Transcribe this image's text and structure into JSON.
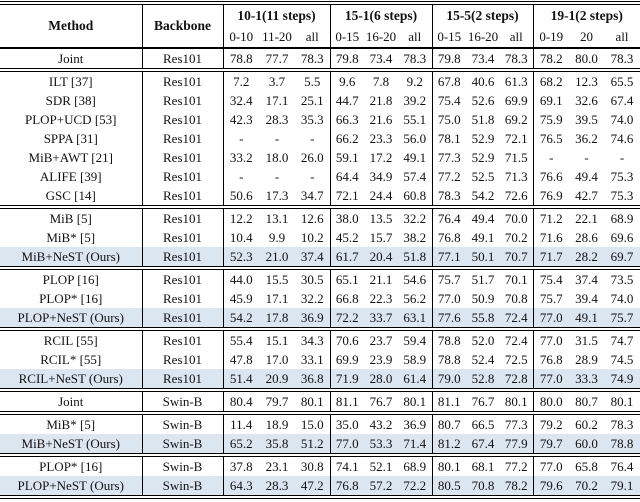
{
  "table": {
    "highlight_color": "#dce6f1",
    "header": {
      "method": "Method",
      "backbone": "Backbone",
      "groups": [
        {
          "label": "10-1(11 steps)",
          "cols": [
            "0-10",
            "11-20",
            "all"
          ]
        },
        {
          "label": "15-1(6 steps)",
          "cols": [
            "0-15",
            "16-20",
            "all"
          ]
        },
        {
          "label": "15-5(2 steps)",
          "cols": [
            "0-15",
            "16-20",
            "all"
          ]
        },
        {
          "label": "19-1(2 steps)",
          "cols": [
            "0-19",
            "20",
            "all"
          ]
        }
      ]
    },
    "sections": [
      {
        "rows": [
          {
            "method": "Joint",
            "backbone": "Res101",
            "highlight": false,
            "values": [
              "78.8",
              "77.7",
              "78.3",
              "79.8",
              "73.4",
              "78.3",
              "79.8",
              "73.4",
              "78.3",
              "78.2",
              "80.0",
              "78.3"
            ]
          }
        ]
      },
      {
        "rows": [
          {
            "method": "ILT [37]",
            "backbone": "Res101",
            "highlight": false,
            "values": [
              "7.2",
              "3.7",
              "5.5",
              "9.6",
              "7.8",
              "9.2",
              "67.8",
              "40.6",
              "61.3",
              "68.2",
              "12.3",
              "65.5"
            ]
          },
          {
            "method": "SDR [38]",
            "backbone": "Res101",
            "highlight": false,
            "values": [
              "32.4",
              "17.1",
              "25.1",
              "44.7",
              "21.8",
              "39.2",
              "75.4",
              "52.6",
              "69.9",
              "69.1",
              "32.6",
              "67.4"
            ]
          },
          {
            "method": "PLOP+UCD [53]",
            "backbone": "Res101",
            "highlight": false,
            "values": [
              "42.3",
              "28.3",
              "35.3",
              "66.3",
              "21.6",
              "55.1",
              "75.0",
              "51.8",
              "69.2",
              "75.9",
              "39.5",
              "74.0"
            ]
          },
          {
            "method": "SPPA [31]",
            "backbone": "Res101",
            "highlight": false,
            "values": [
              "-",
              "-",
              "-",
              "66.2",
              "23.3",
              "56.0",
              "78.1",
              "52.9",
              "72.1",
              "76.5",
              "36.2",
              "74.6"
            ]
          },
          {
            "method": "MiB+AWT [21]",
            "backbone": "Res101",
            "highlight": false,
            "values": [
              "33.2",
              "18.0",
              "26.0",
              "59.1",
              "17.2",
              "49.1",
              "77.3",
              "52.9",
              "71.5",
              "-",
              "-",
              "-"
            ]
          },
          {
            "method": "ALIFE [39]",
            "backbone": "Res101",
            "highlight": false,
            "values": [
              "-",
              "-",
              "-",
              "64.4",
              "34.9",
              "57.4",
              "77.2",
              "52.5",
              "71.3",
              "76.6",
              "49.4",
              "75.3"
            ]
          },
          {
            "method": "GSC [14]",
            "backbone": "Res101",
            "highlight": false,
            "values": [
              "50.6",
              "17.3",
              "34.7",
              "72.1",
              "24.4",
              "60.8",
              "78.3",
              "54.2",
              "72.6",
              "76.9",
              "42.7",
              "75.3"
            ]
          }
        ]
      },
      {
        "rows": [
          {
            "method": "MiB [5]",
            "backbone": "Res101",
            "highlight": false,
            "values": [
              "12.2",
              "13.1",
              "12.6",
              "38.0",
              "13.5",
              "32.2",
              "76.4",
              "49.4",
              "70.0",
              "71.2",
              "22.1",
              "68.9"
            ]
          },
          {
            "method": "MiB* [5]",
            "backbone": "Res101",
            "highlight": false,
            "values": [
              "10.4",
              "9.9",
              "10.2",
              "45.2",
              "15.7",
              "38.2",
              "76.8",
              "49.1",
              "70.2",
              "71.6",
              "28.6",
              "69.6"
            ]
          },
          {
            "method": "MiB+NeST (Ours)",
            "backbone": "Res101",
            "highlight": true,
            "values": [
              "52.3",
              "21.0",
              "37.4",
              "61.7",
              "20.4",
              "51.8",
              "77.1",
              "50.1",
              "70.7",
              "71.7",
              "28.2",
              "69.7"
            ]
          }
        ]
      },
      {
        "rows": [
          {
            "method": "PLOP [16]",
            "backbone": "Res101",
            "highlight": false,
            "values": [
              "44.0",
              "15.5",
              "30.5",
              "65.1",
              "21.1",
              "54.6",
              "75.7",
              "51.7",
              "70.1",
              "75.4",
              "37.4",
              "73.5"
            ]
          },
          {
            "method": "PLOP* [16]",
            "backbone": "Res101",
            "highlight": false,
            "values": [
              "45.9",
              "17.1",
              "32.2",
              "66.8",
              "22.3",
              "56.2",
              "77.0",
              "50.9",
              "70.8",
              "75.7",
              "39.4",
              "74.0"
            ]
          },
          {
            "method": "PLOP+NeST (Ours)",
            "backbone": "Res101",
            "highlight": true,
            "values": [
              "54.2",
              "17.8",
              "36.9",
              "72.2",
              "33.7",
              "63.1",
              "77.6",
              "55.8",
              "72.4",
              "77.0",
              "49.1",
              "75.7"
            ]
          }
        ]
      },
      {
        "rows": [
          {
            "method": "RCIL [55]",
            "backbone": "Res101",
            "highlight": false,
            "values": [
              "55.4",
              "15.1",
              "34.3",
              "70.6",
              "23.7",
              "59.4",
              "78.8",
              "52.0",
              "72.4",
              "77.0",
              "31.5",
              "74.7"
            ]
          },
          {
            "method": "RCIL* [55]",
            "backbone": "Res101",
            "highlight": false,
            "values": [
              "47.8",
              "17.0",
              "33.1",
              "69.9",
              "23.9",
              "58.9",
              "78.8",
              "52.4",
              "72.5",
              "76.8",
              "28.9",
              "74.5"
            ]
          },
          {
            "method": "RCIL+NeST (Ours)",
            "backbone": "Res101",
            "highlight": true,
            "values": [
              "51.4",
              "20.9",
              "36.8",
              "71.9",
              "28.0",
              "61.4",
              "79.0",
              "52.8",
              "72.8",
              "77.0",
              "33.3",
              "74.9"
            ]
          }
        ]
      },
      {
        "rows": [
          {
            "method": "Joint",
            "backbone": "Swin-B",
            "highlight": false,
            "values": [
              "80.4",
              "79.7",
              "80.1",
              "81.1",
              "76.7",
              "80.1",
              "81.1",
              "76.7",
              "80.1",
              "80.0",
              "80.7",
              "80.1"
            ]
          }
        ]
      },
      {
        "rows": [
          {
            "method": "MiB* [5]",
            "backbone": "Swin-B",
            "highlight": false,
            "values": [
              "11.4",
              "18.9",
              "15.0",
              "35.0",
              "43.2",
              "36.9",
              "80.7",
              "66.5",
              "77.3",
              "79.2",
              "60.2",
              "78.3"
            ]
          },
          {
            "method": "MiB+NeST (Ours)",
            "backbone": "Swin-B",
            "highlight": true,
            "values": [
              "65.2",
              "35.8",
              "51.2",
              "77.0",
              "53.3",
              "71.4",
              "81.2",
              "67.4",
              "77.9",
              "79.7",
              "60.0",
              "78.8"
            ]
          }
        ]
      },
      {
        "rows": [
          {
            "method": "PLOP* [16]",
            "backbone": "Swin-B",
            "highlight": false,
            "values": [
              "37.8",
              "23.1",
              "30.8",
              "74.1",
              "52.1",
              "68.9",
              "80.1",
              "68.1",
              "77.2",
              "77.0",
              "65.8",
              "76.4"
            ]
          },
          {
            "method": "PLOP+NeST (Ours)",
            "backbone": "Swin-B",
            "highlight": true,
            "values": [
              "64.3",
              "28.3",
              "47.2",
              "76.8",
              "57.2",
              "72.2",
              "80.5",
              "70.8",
              "78.2",
              "79.6",
              "70.2",
              "79.1"
            ]
          }
        ]
      }
    ]
  }
}
